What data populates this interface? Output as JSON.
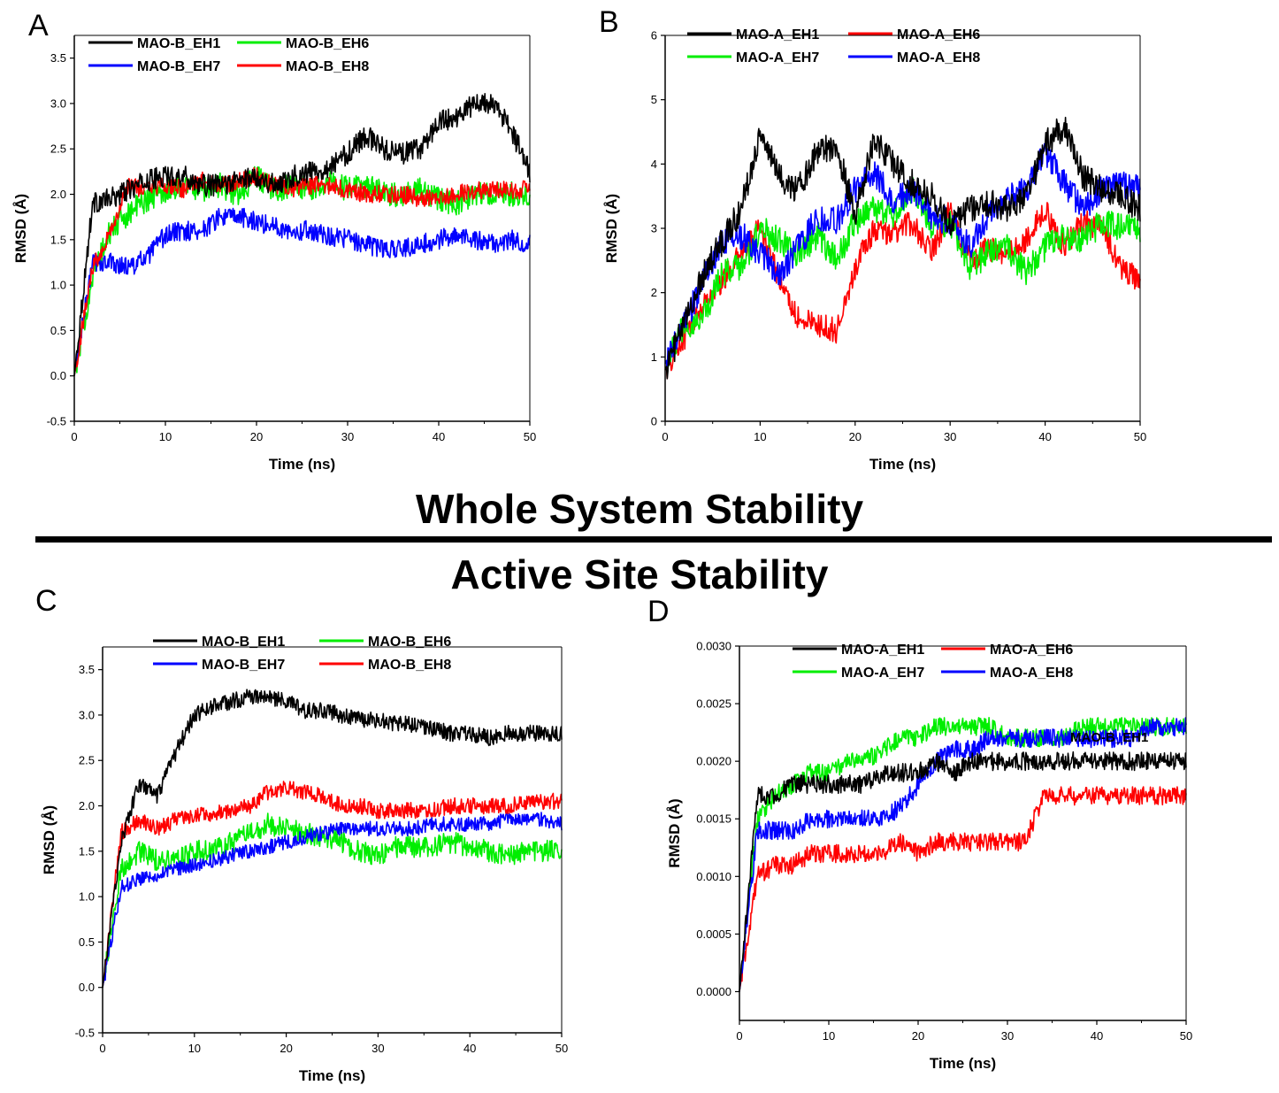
{
  "section_titles": {
    "whole": "Whole System Stability",
    "active": "Active Site Stability"
  },
  "colors": {
    "black": "#000000",
    "red": "#ff0000",
    "green": "#00ee00",
    "blue": "#0000ff"
  },
  "chart_data": [
    {
      "panel": "A",
      "type": "line",
      "title": "",
      "xlabel": "Time (ns)",
      "ylabel": "RMSD (Å)",
      "xlim": [
        0,
        50
      ],
      "ylim": [
        -0.5,
        3.75
      ],
      "xticks": [
        0,
        10,
        20,
        30,
        40,
        50
      ],
      "yticks": [
        -0.5,
        0.0,
        0.5,
        1.0,
        1.5,
        2.0,
        2.5,
        3.0,
        3.5
      ],
      "ytick_labels": [
        "-0.5",
        "0.0",
        "0.5",
        "1.0",
        "1.5",
        "2.0",
        "2.5",
        "3.0",
        "3.5"
      ],
      "legend_position": "top-left",
      "x": [
        0,
        2,
        4,
        6,
        8,
        10,
        12,
        14,
        16,
        18,
        20,
        22,
        24,
        26,
        28,
        30,
        32,
        34,
        36,
        38,
        40,
        42,
        44,
        46,
        48,
        50
      ],
      "series": [
        {
          "name": "MAO-B_EH1",
          "color": "black",
          "legend_label": "MAO-B_EH1",
          "noise": 0.12,
          "values": [
            0.0,
            1.9,
            1.95,
            2.05,
            2.15,
            2.2,
            2.2,
            2.1,
            2.1,
            2.15,
            2.2,
            2.1,
            2.2,
            2.25,
            2.3,
            2.45,
            2.65,
            2.5,
            2.45,
            2.5,
            2.8,
            2.85,
            3.0,
            3.0,
            2.7,
            2.25
          ]
        },
        {
          "name": "MAO-B_EH6",
          "color": "green",
          "legend_label": "MAO-B_EH6",
          "noise": 0.14,
          "values": [
            0.0,
            1.1,
            1.6,
            1.8,
            1.95,
            2.05,
            2.1,
            2.05,
            2.1,
            2.0,
            2.2,
            2.05,
            2.1,
            2.05,
            2.15,
            2.05,
            2.1,
            2.0,
            2.0,
            2.05,
            1.95,
            1.9,
            2.0,
            2.0,
            2.0,
            2.0
          ]
        },
        {
          "name": "MAO-B_EH7",
          "color": "blue",
          "legend_label": "MAO-B_EH7",
          "noise": 0.11,
          "values": [
            0.0,
            1.25,
            1.25,
            1.2,
            1.3,
            1.55,
            1.6,
            1.6,
            1.75,
            1.75,
            1.7,
            1.65,
            1.6,
            1.6,
            1.55,
            1.5,
            1.45,
            1.4,
            1.4,
            1.45,
            1.5,
            1.55,
            1.5,
            1.45,
            1.5,
            1.45
          ]
        },
        {
          "name": "MAO-B_EH8",
          "color": "red",
          "legend_label": "MAO-B_EH8",
          "noise": 0.1,
          "values": [
            0.0,
            1.2,
            1.6,
            2.1,
            2.05,
            2.1,
            2.05,
            2.15,
            2.1,
            2.15,
            2.2,
            2.1,
            2.05,
            2.1,
            2.1,
            2.05,
            2.0,
            2.0,
            2.0,
            1.95,
            1.95,
            2.0,
            2.05,
            2.05,
            2.05,
            2.05
          ]
        }
      ]
    },
    {
      "panel": "B",
      "type": "line",
      "title": "",
      "xlabel": "Time (ns)",
      "ylabel": "RMSD (Å)",
      "xlim": [
        0,
        50
      ],
      "ylim": [
        0,
        6
      ],
      "xticks": [
        0,
        10,
        20,
        30,
        40,
        50
      ],
      "yticks": [
        0,
        1,
        2,
        3,
        4,
        5,
        6
      ],
      "ytick_labels": [
        "0",
        "1",
        "2",
        "3",
        "4",
        "5",
        "6"
      ],
      "legend_position": "top-left",
      "x": [
        0,
        2,
        4,
        6,
        8,
        10,
        12,
        14,
        16,
        18,
        20,
        22,
        24,
        26,
        28,
        30,
        32,
        34,
        36,
        38,
        40,
        42,
        44,
        46,
        48,
        50
      ],
      "series": [
        {
          "name": "MAO-A_EH1",
          "color": "black",
          "legend_label": "MAO-A_EH1",
          "noise": 0.22,
          "values": [
            0.8,
            1.5,
            2.3,
            2.8,
            3.3,
            4.5,
            3.8,
            3.6,
            4.2,
            4.3,
            3.2,
            4.4,
            4.0,
            3.7,
            3.5,
            3.1,
            3.3,
            3.4,
            3.3,
            3.5,
            4.3,
            4.6,
            3.8,
            3.6,
            3.5,
            3.3
          ]
        },
        {
          "name": "MAO-A_EH6",
          "color": "red",
          "legend_label": "MAO-A_EH6",
          "noise": 0.2,
          "values": [
            0.8,
            1.3,
            1.8,
            2.2,
            2.6,
            3.0,
            2.2,
            1.6,
            1.5,
            1.4,
            2.4,
            3.0,
            2.9,
            3.1,
            2.6,
            3.3,
            2.5,
            2.7,
            2.6,
            2.8,
            3.3,
            2.7,
            3.1,
            3.0,
            2.4,
            2.2
          ]
        },
        {
          "name": "MAO-A_EH7",
          "color": "green",
          "legend_label": "MAO-A_EH7",
          "noise": 0.22,
          "values": [
            0.9,
            1.5,
            1.6,
            2.3,
            2.4,
            3.0,
            2.8,
            2.6,
            2.9,
            2.5,
            3.1,
            3.3,
            3.2,
            3.6,
            3.0,
            3.1,
            2.4,
            2.6,
            2.7,
            2.3,
            2.7,
            2.9,
            2.8,
            3.1,
            3.0,
            3.0
          ]
        },
        {
          "name": "MAO-A_EH8",
          "color": "blue",
          "legend_label": "MAO-A_EH8",
          "noise": 0.22,
          "values": [
            0.9,
            1.5,
            2.2,
            2.8,
            2.9,
            2.6,
            2.3,
            2.7,
            3.2,
            3.1,
            3.6,
            3.9,
            3.4,
            3.6,
            3.2,
            3.1,
            2.7,
            3.2,
            3.5,
            3.6,
            4.2,
            3.7,
            3.3,
            3.6,
            3.7,
            3.6
          ]
        }
      ]
    },
    {
      "panel": "C",
      "type": "line",
      "title": "",
      "xlabel": "Time (ns)",
      "ylabel": "RMSD (Å)",
      "xlim": [
        0,
        50
      ],
      "ylim": [
        -0.5,
        3.75
      ],
      "xticks": [
        0,
        10,
        20,
        30,
        40,
        50
      ],
      "yticks": [
        -0.5,
        0.0,
        0.5,
        1.0,
        1.5,
        2.0,
        2.5,
        3.0,
        3.5
      ],
      "ytick_labels": [
        "-0.5",
        "0.0",
        "0.5",
        "1.0",
        "1.5",
        "2.0",
        "2.5",
        "3.0",
        "3.5"
      ],
      "legend_position": "top-right",
      "x": [
        0,
        2,
        4,
        6,
        8,
        10,
        12,
        14,
        16,
        18,
        20,
        22,
        24,
        26,
        28,
        30,
        32,
        34,
        36,
        38,
        40,
        42,
        44,
        46,
        48,
        50
      ],
      "series": [
        {
          "name": "MAO-B_EH1",
          "color": "black",
          "legend_label": "MAO-B_EH1",
          "noise": 0.09,
          "values": [
            0.0,
            1.6,
            2.25,
            2.1,
            2.6,
            3.0,
            3.1,
            3.15,
            3.2,
            3.2,
            3.15,
            3.05,
            3.05,
            3.0,
            2.95,
            2.95,
            2.9,
            2.9,
            2.85,
            2.8,
            2.8,
            2.75,
            2.8,
            2.8,
            2.8,
            2.8
          ]
        },
        {
          "name": "MAO-B_EH6",
          "color": "green",
          "legend_label": "MAO-B_EH6",
          "noise": 0.12,
          "values": [
            0.0,
            1.3,
            1.5,
            1.4,
            1.4,
            1.5,
            1.5,
            1.6,
            1.7,
            1.8,
            1.75,
            1.7,
            1.65,
            1.6,
            1.5,
            1.45,
            1.55,
            1.55,
            1.55,
            1.6,
            1.55,
            1.5,
            1.45,
            1.5,
            1.5,
            1.5
          ]
        },
        {
          "name": "MAO-B_EH7",
          "color": "blue",
          "legend_label": "MAO-B_EH7",
          "noise": 0.08,
          "values": [
            0.0,
            1.1,
            1.2,
            1.25,
            1.3,
            1.35,
            1.4,
            1.45,
            1.5,
            1.55,
            1.6,
            1.65,
            1.7,
            1.75,
            1.75,
            1.75,
            1.75,
            1.75,
            1.8,
            1.8,
            1.8,
            1.8,
            1.85,
            1.85,
            1.85,
            1.8
          ]
        },
        {
          "name": "MAO-B_EH8",
          "color": "red",
          "legend_label": "MAO-B_EH8",
          "noise": 0.09,
          "values": [
            0.0,
            1.7,
            1.85,
            1.75,
            1.85,
            1.9,
            1.9,
            1.95,
            2.0,
            2.15,
            2.2,
            2.15,
            2.1,
            2.0,
            2.0,
            1.95,
            1.95,
            1.95,
            1.95,
            2.0,
            2.0,
            2.0,
            2.0,
            2.05,
            2.05,
            2.05
          ]
        }
      ]
    },
    {
      "panel": "D",
      "type": "line",
      "title": "",
      "xlabel": "Time (ns)",
      "ylabel": "RMSD (Å)",
      "xlim": [
        0,
        50
      ],
      "ylim": [
        -0.00025,
        0.003
      ],
      "xticks": [
        0,
        10,
        20,
        30,
        40,
        50
      ],
      "yticks": [
        0.0,
        0.0005,
        0.001,
        0.0015,
        0.002,
        0.0025,
        0.003
      ],
      "ytick_labels": [
        "0.0000",
        "0.0005",
        "0.0010",
        "0.0015",
        "0.0020",
        "0.0025",
        "0.0030"
      ],
      "legend_position": "top-center",
      "annotation": "MAO-B_EH1",
      "x": [
        0,
        2,
        4,
        6,
        8,
        10,
        12,
        14,
        16,
        18,
        20,
        22,
        24,
        26,
        28,
        30,
        32,
        34,
        36,
        38,
        40,
        42,
        44,
        46,
        48,
        50
      ],
      "series": [
        {
          "name": "MAO-A_EH1",
          "color": "black",
          "legend_label": "MAO-A_EH1",
          "noise": 8e-05,
          "values": [
            0.0,
            0.0017,
            0.0017,
            0.0018,
            0.0018,
            0.0018,
            0.0018,
            0.0018,
            0.0019,
            0.0019,
            0.0019,
            0.002,
            0.0019,
            0.002,
            0.002,
            0.002,
            0.002,
            0.002,
            0.002,
            0.002,
            0.002,
            0.002,
            0.002,
            0.002,
            0.002,
            0.002
          ]
        },
        {
          "name": "MAO-A_EH6",
          "color": "red",
          "legend_label": "MAO-A_EH6",
          "noise": 8e-05,
          "values": [
            0.0,
            0.001,
            0.0011,
            0.0011,
            0.0012,
            0.0012,
            0.0012,
            0.0012,
            0.0012,
            0.0013,
            0.0012,
            0.0013,
            0.0013,
            0.0013,
            0.0013,
            0.0013,
            0.0013,
            0.0017,
            0.0017,
            0.0017,
            0.0017,
            0.0017,
            0.0017,
            0.0017,
            0.0017,
            0.0017
          ]
        },
        {
          "name": "MAO-A_EH7",
          "color": "green",
          "legend_label": "MAO-A_EH7",
          "noise": 8e-05,
          "values": [
            0.0,
            0.0015,
            0.0017,
            0.0018,
            0.0019,
            0.0019,
            0.002,
            0.002,
            0.0021,
            0.0022,
            0.0022,
            0.0023,
            0.0023,
            0.0023,
            0.0023,
            0.0022,
            0.0022,
            0.0022,
            0.0022,
            0.0023,
            0.0023,
            0.0023,
            0.0023,
            0.0023,
            0.0023,
            0.0023
          ]
        },
        {
          "name": "MAO-A_EH8",
          "color": "blue",
          "legend_label": "MAO-A_EH8",
          "noise": 8e-05,
          "values": [
            0.0,
            0.0014,
            0.0014,
            0.0014,
            0.0015,
            0.0015,
            0.0015,
            0.0015,
            0.0015,
            0.0016,
            0.0018,
            0.002,
            0.0021,
            0.0021,
            0.0022,
            0.0022,
            0.0022,
            0.0022,
            0.0022,
            0.0022,
            0.0022,
            0.0022,
            0.0022,
            0.0023,
            0.0023,
            0.0023
          ]
        }
      ]
    }
  ]
}
